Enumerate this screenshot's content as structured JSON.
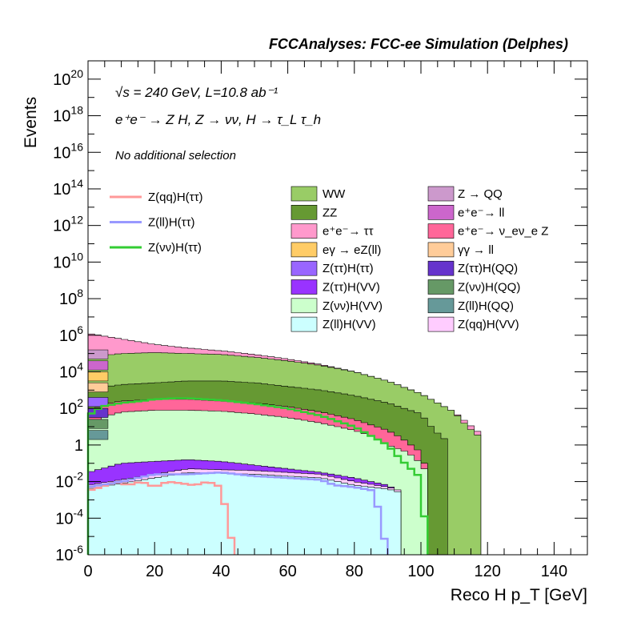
{
  "chart_data": {
    "type": "area",
    "title": "FCCAnalyses: FCC-ee Simulation (Delphes)",
    "annotations": {
      "energy_lumi": "√s = 240 GeV, L=10.8 ab⁻¹",
      "process": "e⁺e⁻ → Z H, Z → νν, H → τ_L τ_h",
      "selection": "No additional selection"
    },
    "xlabel": "Reco H p_T [GeV]",
    "ylabel": "Events",
    "xlim": [
      0,
      150
    ],
    "ylim": [
      1e-06,
      1e+21
    ],
    "yscale": "log",
    "x_ticks": [
      "0",
      "20",
      "40",
      "60",
      "80",
      "100",
      "120",
      "140"
    ],
    "y_ticks": [
      {
        "base": "10",
        "exp": "-6"
      },
      {
        "base": "10",
        "exp": "-4"
      },
      {
        "base": "10",
        "exp": "-2"
      },
      {
        "base": "1",
        "exp": ""
      },
      {
        "base": "10",
        "exp": "2"
      },
      {
        "base": "10",
        "exp": "4"
      },
      {
        "base": "10",
        "exp": "6"
      },
      {
        "base": "10",
        "exp": "8"
      },
      {
        "base": "10",
        "exp": "10"
      },
      {
        "base": "10",
        "exp": "12"
      },
      {
        "base": "10",
        "exp": "14"
      },
      {
        "base": "10",
        "exp": "16"
      },
      {
        "base": "10",
        "exp": "18"
      },
      {
        "base": "10",
        "exp": "20"
      }
    ],
    "bin_width_gev": 2,
    "stack_total_log10": {
      "x": [
        0,
        2,
        6,
        10,
        16,
        20,
        30,
        40,
        50,
        60,
        70,
        80,
        90,
        100,
        110,
        116,
        118,
        119
      ],
      "y": [
        6.1,
        5.8,
        5.65,
        5.5,
        5.5,
        5.45,
        5.3,
        5.15,
        4.95,
        4.7,
        4.4,
        4.0,
        3.5,
        2.8,
        1.8,
        0.6,
        0.2,
        0.2
      ]
    },
    "stacked_series": [
      {
        "name": "Z(ll)H(VV)",
        "color": "#ccffff",
        "log10": {
          "x": [
            0,
            10,
            30,
            50,
            60,
            70,
            80,
            90,
            94
          ],
          "y": [
            -2.4,
            -2.1,
            -1.5,
            -1.6,
            -1.7,
            -1.8,
            -2.2,
            -2.4,
            -2.6
          ]
        }
      },
      {
        "name": "Z(qq)H(VV)",
        "color": "#ffccff",
        "log10": {
          "x": [
            0,
            10,
            30,
            50,
            60,
            70,
            80,
            90,
            94
          ],
          "y": [
            -2.2,
            -1.9,
            -1.3,
            -1.4,
            -1.5,
            -1.6,
            -2.0,
            -2.3,
            -2.5
          ]
        }
      },
      {
        "name": "Z(ττ)H(VV)",
        "color": "#9933ff",
        "log10": {
          "x": [
            0,
            10,
            20,
            30,
            40,
            50,
            60,
            70,
            80,
            90,
            94
          ],
          "y": [
            -1.5,
            -1.0,
            -0.9,
            -0.8,
            -0.9,
            -1.1,
            -1.3,
            -1.5,
            -1.8,
            -2.2,
            -2.6
          ]
        }
      },
      {
        "name": "Z(νν)H(VV)",
        "color": "#ccffcc",
        "log10": {
          "x": [
            0,
            4,
            10,
            20,
            30,
            40,
            50,
            60,
            70,
            80,
            85,
            90,
            96,
            100,
            102
          ],
          "y": [
            1.0,
            1.5,
            1.8,
            1.9,
            1.9,
            1.85,
            1.7,
            1.5,
            1.2,
            0.8,
            0.5,
            0.0,
            -0.4,
            -1.0,
            -1.6
          ]
        }
      },
      {
        "name": "e⁺e⁻→ ν_eν_e Z",
        "color": "#ff6699",
        "log10": {
          "x": [
            0,
            4,
            10,
            20,
            30,
            40,
            50,
            60,
            70,
            80,
            90,
            94,
            100,
            102
          ],
          "y": [
            1.6,
            2.2,
            2.4,
            2.5,
            2.5,
            2.4,
            2.3,
            2.1,
            1.8,
            1.4,
            0.8,
            0.4,
            -0.4,
            -1.6
          ]
        }
      },
      {
        "name": "ZZ",
        "color": "#669933",
        "log10": {
          "x": [
            0,
            6,
            10,
            20,
            30,
            40,
            50,
            60,
            70,
            80,
            90,
            100,
            104,
            108
          ],
          "y": [
            3.2,
            3.2,
            3.3,
            3.4,
            3.5,
            3.5,
            3.4,
            3.2,
            3.0,
            2.7,
            2.3,
            1.7,
            0.8,
            0.2
          ]
        }
      },
      {
        "name": "WW",
        "color": "#99cc66",
        "log10": {
          "x": [
            0,
            10,
            20,
            30,
            40,
            50,
            60,
            70,
            80,
            90,
            100,
            110,
            114,
            118
          ],
          "y": [
            4.8,
            5.0,
            5.05,
            5.0,
            4.95,
            4.8,
            4.6,
            4.35,
            4.0,
            3.5,
            2.8,
            1.8,
            1.0,
            0.4
          ]
        }
      },
      {
        "name": "e⁺e⁻→ ττ",
        "color": "#ff99cc",
        "log10": {
          "x": [
            0,
            10,
            20,
            30,
            40,
            50,
            60,
            70,
            80,
            90,
            100,
            110,
            114,
            118
          ],
          "y": [
            6.1,
            5.8,
            5.5,
            5.3,
            5.15,
            4.95,
            4.7,
            4.4,
            4.0,
            3.5,
            2.8,
            1.8,
            1.2,
            0.6
          ]
        }
      }
    ],
    "low_pt_components": [
      {
        "name": "Z → QQ",
        "color": "#cc99cc"
      },
      {
        "name": "e⁺e⁻→ ll",
        "color": "#cc66cc"
      },
      {
        "name": "eγ → eZ(ll)",
        "color": "#ffcc66"
      },
      {
        "name": "γγ → ll",
        "color": "#ffcc99"
      },
      {
        "name": "Z(ττ)H(ττ)",
        "color": "#9966ff"
      },
      {
        "name": "Z(ττ)H(QQ)",
        "color": "#6633cc"
      },
      {
        "name": "Z(νν)H(QQ)",
        "color": "#669966"
      },
      {
        "name": "Z(ll)H(QQ)",
        "color": "#669999"
      }
    ],
    "line_series": [
      {
        "name": "Z(qq)H(ττ)",
        "color": "#ff9999",
        "log10": {
          "x": [
            0,
            4,
            8,
            12,
            16,
            20,
            24,
            28,
            32,
            36,
            40,
            44
          ],
          "y": [
            -2.5,
            -2.3,
            -2.0,
            -2.2,
            -2.0,
            -2.3,
            -2.0,
            -2.1,
            -2.2,
            -2.0,
            -2.3,
            -6
          ]
        }
      },
      {
        "name": "Z(ll)H(ττ)",
        "color": "#9999ff",
        "log10": {
          "x": [
            0,
            10,
            20,
            30,
            40,
            50,
            60,
            70,
            74,
            80,
            86,
            90
          ],
          "y": [
            -2.3,
            -2.0,
            -1.6,
            -1.6,
            -1.5,
            -1.7,
            -1.8,
            -1.9,
            -2.2,
            -2.3,
            -2.5,
            -6
          ]
        }
      },
      {
        "name": "Z(νν)H(ττ)",
        "color": "#33cc33",
        "log10": {
          "x": [
            0,
            4,
            10,
            16,
            20,
            26,
            30,
            40,
            50,
            60,
            70,
            80,
            84,
            90,
            94,
            100,
            102
          ],
          "y": [
            1.6,
            2.1,
            2.3,
            2.4,
            2.5,
            2.55,
            2.55,
            2.45,
            2.25,
            2.0,
            1.6,
            1.0,
            0.6,
            0.0,
            -0.8,
            -1.8,
            -6
          ]
        }
      }
    ],
    "legend": {
      "lines": [
        "Z(qq)H(ττ)",
        "Z(ll)H(ττ)",
        "Z(νν)H(ττ)"
      ],
      "fill_col1": [
        "WW",
        "ZZ",
        "e⁺e⁻→ ττ",
        "eγ → eZ(ll)",
        "Z(ττ)H(ττ)",
        "Z(ττ)H(VV)",
        "Z(νν)H(VV)",
        "Z(ll)H(VV)"
      ],
      "fill_col2": [
        "Z → QQ",
        "e⁺e⁻→ ll",
        "e⁺e⁻→ ν_eν_e Z",
        "γγ → ll",
        "Z(ττ)H(QQ)",
        "Z(νν)H(QQ)",
        "Z(ll)H(QQ)",
        "Z(qq)H(VV)"
      ]
    }
  }
}
